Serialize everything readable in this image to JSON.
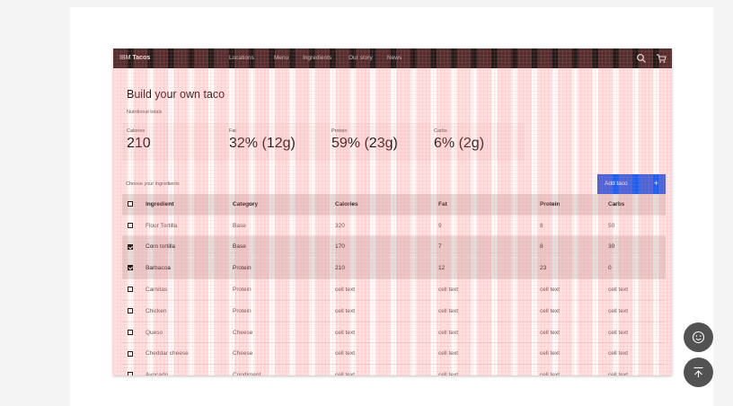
{
  "header": {
    "brand_prefix": "IBM",
    "brand_name": "Tacos",
    "nav": [
      "Locations",
      "Menu",
      "Ingredients",
      "Our story",
      "News"
    ]
  },
  "page_title": "Build your own taco",
  "nutrition": {
    "label": "Nutritional totals",
    "stats": [
      {
        "label": "Calories",
        "value": "210"
      },
      {
        "label": "Fat",
        "value": "32% (12g)"
      },
      {
        "label": "Protein",
        "value": "59% (23g)"
      },
      {
        "label": "Carbs",
        "value": "6% (2g)"
      }
    ]
  },
  "choose_label": "Choose your ingredients",
  "add_button": {
    "label": "Add taco",
    "icon": "+"
  },
  "table": {
    "headers": [
      "Ingredient",
      "Category",
      "Calories",
      "Fat",
      "Protein",
      "Carbs"
    ],
    "rows": [
      {
        "checked": false,
        "cells": [
          "Flour Tortilla",
          "Base",
          "320",
          "9",
          "8",
          "50"
        ]
      },
      {
        "checked": true,
        "cells": [
          "Corn tortilla",
          "Base",
          "170",
          "7",
          "8",
          "30"
        ]
      },
      {
        "checked": true,
        "cells": [
          "Barbacoa",
          "Protein",
          "210",
          "12",
          "23",
          "0"
        ]
      },
      {
        "checked": false,
        "cells": [
          "Carnitas",
          "Protein",
          "cell text",
          "cell text",
          "cell text",
          "cell text"
        ]
      },
      {
        "checked": false,
        "cells": [
          "Chicken",
          "Protein",
          "cell text",
          "cell text",
          "cell text",
          "cell text"
        ]
      },
      {
        "checked": false,
        "cells": [
          "Queso",
          "Cheese",
          "cell text",
          "cell text",
          "cell text",
          "cell text"
        ]
      },
      {
        "checked": false,
        "cells": [
          "Cheddar cheese",
          "Cheese",
          "cell text",
          "cell text",
          "cell text",
          "cell text"
        ]
      },
      {
        "checked": false,
        "cells": [
          "Avocado",
          "Condiment",
          "cell text",
          "cell text",
          "cell text",
          "cell text"
        ]
      }
    ]
  },
  "icons": {
    "search": "search-icon",
    "cart": "cart-icon",
    "feedback": "smiley-icon",
    "back_to_top": "back-to-top-icon"
  },
  "colors": {
    "accent": "#0f62fe",
    "header": "#1c1c1c",
    "fab": "#525252"
  }
}
